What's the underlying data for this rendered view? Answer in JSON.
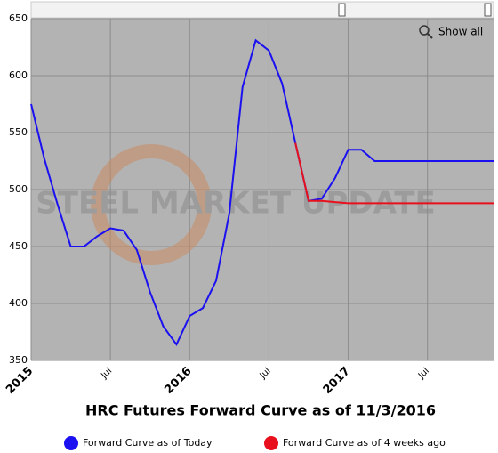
{
  "chart_data": {
    "type": "line",
    "title": "HRC Futures Forward Curve as of 11/3/2016",
    "watermark": "STEEL MARKET UPDATE",
    "zoom_button": "Show all",
    "categories": [
      "2015",
      null,
      null,
      null,
      null,
      null,
      "Jul",
      null,
      null,
      null,
      null,
      null,
      "2016",
      null,
      null,
      null,
      null,
      null,
      "Jul",
      null,
      null,
      null,
      null,
      null,
      "2017",
      null,
      null,
      null,
      null,
      null,
      "Jul",
      null,
      null,
      null,
      null,
      null
    ],
    "series": [
      {
        "name": "Forward Curve as of Today",
        "color": "#1a10f0",
        "values": [
          575,
          527,
          487,
          450,
          450,
          459,
          466,
          464,
          447,
          410,
          380,
          364,
          389,
          396,
          420,
          479,
          590,
          631,
          622,
          593,
          541,
          490,
          492,
          510,
          535,
          535,
          525,
          525,
          525,
          525,
          525,
          525,
          525,
          525,
          525,
          525
        ]
      },
      {
        "name": "Forward Curve as of 4 weeks ago",
        "color": "#e8101c",
        "values": [
          null,
          null,
          null,
          null,
          null,
          null,
          null,
          null,
          null,
          null,
          null,
          null,
          null,
          null,
          null,
          null,
          null,
          null,
          null,
          null,
          541,
          490,
          490,
          489,
          488,
          488,
          488,
          488,
          488,
          488,
          488,
          488,
          488,
          488,
          488,
          488
        ]
      }
    ],
    "ylim": [
      350,
      650
    ],
    "yticks": [
      350,
      400,
      450,
      500,
      550,
      600,
      650
    ],
    "grid": true
  }
}
